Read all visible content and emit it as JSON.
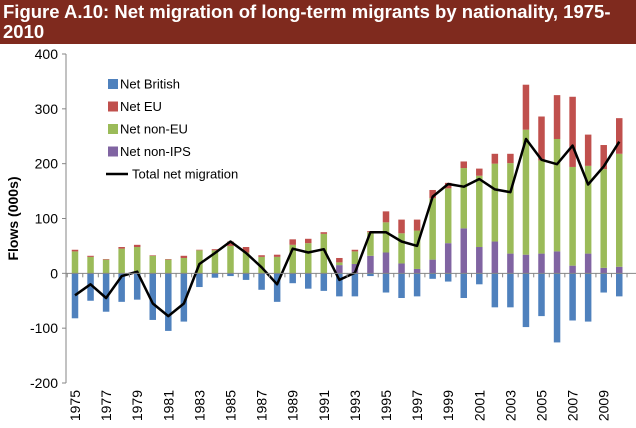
{
  "title": "Figure A.10: Net migration of long-term migrants by nationality, 1975-2010",
  "colors": {
    "title_bg": "#7f2a1e",
    "net_british": "#4f81bd",
    "net_eu": "#c0504d",
    "net_non_eu": "#9bbb59",
    "net_non_ips": "#8064a2",
    "total": "#000000"
  },
  "chart_data": {
    "type": "bar",
    "title": "Figure A.10: Net migration of long-term migrants by nationality, 1975-2010",
    "xlabel": "",
    "ylabel": "Flows (000s)",
    "ylim": [
      -200,
      400
    ],
    "yticks": [
      -200,
      -100,
      0,
      100,
      200,
      300,
      400
    ],
    "ytick_labels": [
      "-200",
      "-100",
      "0",
      "100",
      "200",
      "300",
      "400"
    ],
    "years": [
      1975,
      1976,
      1977,
      1978,
      1979,
      1980,
      1981,
      1982,
      1983,
      1984,
      1985,
      1986,
      1987,
      1988,
      1989,
      1990,
      1991,
      1992,
      1993,
      1994,
      1995,
      1996,
      1997,
      1998,
      1999,
      2000,
      2001,
      2002,
      2003,
      2004,
      2005,
      2006,
      2007,
      2008,
      2009,
      2010
    ],
    "xtick_labels": [
      "1975",
      "1977",
      "1979",
      "1981",
      "1983",
      "1985",
      "1987",
      "1989",
      "1991",
      "1993",
      "1995",
      "1997",
      "1999",
      "2001",
      "2003",
      "2005",
      "2007",
      "2009"
    ],
    "legend_position": "top-left",
    "series": [
      {
        "name": "Net British",
        "key": "net_british",
        "color": "#4f81bd",
        "values": [
          -82,
          -50,
          -70,
          -52,
          -48,
          -85,
          -105,
          -88,
          -25,
          -8,
          -5,
          -12,
          -30,
          -52,
          -18,
          -28,
          -32,
          -42,
          -42,
          -5,
          -35,
          -45,
          -42,
          -10,
          -15,
          -45,
          -20,
          -62,
          -62,
          -98,
          -78,
          -126,
          -86,
          -88,
          -35,
          -42
        ]
      },
      {
        "name": "Net non-IPS",
        "key": "net_non_ips",
        "color": "#8064a2",
        "values": [
          0,
          0,
          0,
          0,
          0,
          0,
          0,
          0,
          0,
          0,
          0,
          0,
          0,
          0,
          0,
          0,
          0,
          15,
          17,
          32,
          38,
          18,
          8,
          25,
          55,
          82,
          48,
          58,
          36,
          34,
          36,
          40,
          14,
          36,
          10,
          12
        ]
      },
      {
        "name": "Net non-EU",
        "key": "net_non_eu",
        "color": "#9bbb59",
        "values": [
          40,
          30,
          25,
          45,
          48,
          32,
          25,
          28,
          42,
          42,
          50,
          38,
          30,
          30,
          52,
          55,
          72,
          5,
          23,
          43,
          55,
          55,
          70,
          112,
          100,
          110,
          130,
          142,
          165,
          228,
          170,
          205,
          180,
          160,
          180,
          206
        ]
      },
      {
        "name": "Net EU",
        "key": "net_eu",
        "color": "#c0504d",
        "values": [
          3,
          2,
          1,
          3,
          4,
          1,
          1,
          4,
          1,
          2,
          8,
          10,
          3,
          4,
          10,
          8,
          3,
          8,
          3,
          2,
          20,
          25,
          20,
          15,
          10,
          12,
          13,
          18,
          17,
          82,
          80,
          80,
          128,
          57,
          44,
          65
        ]
      }
    ],
    "total": {
      "name": "Total net migration",
      "key": "total",
      "color": "#000000",
      "values": [
        -40,
        -20,
        -45,
        -5,
        3,
        -55,
        -78,
        -55,
        17,
        37,
        58,
        37,
        11,
        -20,
        45,
        38,
        44,
        -12,
        1,
        75,
        75,
        58,
        50,
        140,
        163,
        158,
        172,
        153,
        148,
        245,
        207,
        199,
        233,
        162,
        195,
        240
      ]
    },
    "legend_order": [
      "net_british",
      "net_eu",
      "net_non_eu",
      "net_non_ips",
      "total"
    ]
  }
}
